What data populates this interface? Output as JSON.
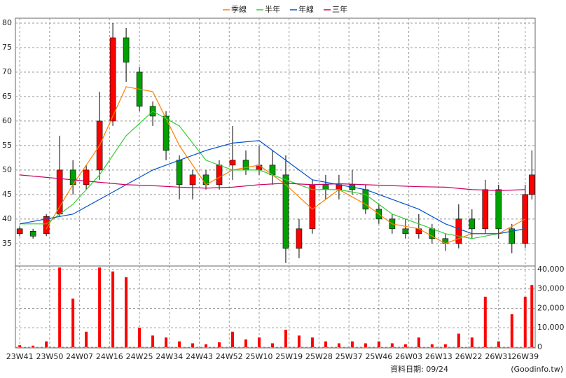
{
  "chart_data": [
    {
      "type": "candlestick",
      "x": [
        0,
        4,
        8,
        12,
        16,
        20,
        24,
        28,
        32,
        36,
        40,
        44,
        48,
        52,
        56,
        60,
        64,
        68,
        72,
        76,
        80,
        84,
        88,
        92,
        96,
        100,
        104,
        108,
        112,
        116,
        120,
        124,
        128,
        132,
        136,
        140,
        144,
        148,
        152,
        154
      ],
      "open": [
        37,
        37.5,
        37,
        41,
        50,
        47,
        50,
        60,
        77,
        70,
        63,
        61,
        52,
        47,
        49,
        47,
        51,
        52,
        50,
        51,
        49,
        34,
        38,
        47,
        46,
        47,
        46,
        42,
        40,
        38,
        37,
        38,
        36,
        35,
        40,
        38,
        46,
        38,
        35,
        45
      ],
      "high": [
        38.5,
        38,
        41,
        57,
        52,
        51,
        66,
        80,
        79,
        71,
        64,
        62,
        53,
        50,
        50,
        52,
        59,
        54,
        55,
        54,
        53,
        40,
        48,
        49,
        49,
        50,
        47,
        43,
        41,
        40,
        41,
        39,
        37,
        43,
        42,
        48,
        47,
        39,
        47,
        54
      ],
      "low": [
        36.5,
        36,
        36.5,
        40.5,
        45,
        46,
        48,
        59,
        68,
        62,
        59,
        52,
        44,
        44,
        46,
        46,
        48,
        49,
        49,
        47,
        31,
        32,
        37,
        44,
        44,
        45,
        41,
        39,
        37,
        36,
        36,
        35,
        33.5,
        34,
        36,
        37,
        36,
        33,
        34,
        44
      ],
      "close": [
        38,
        36.5,
        40.5,
        50,
        47,
        50,
        60,
        77,
        72,
        63,
        61,
        54,
        47,
        49,
        47,
        51,
        52,
        50,
        51,
        49,
        34,
        38,
        47,
        46,
        47,
        46,
        42,
        40,
        38,
        37,
        38,
        36,
        35,
        40,
        38,
        46,
        38,
        35,
        45,
        49
      ],
      "up_color": "#ff0000",
      "down_color": "#00a000",
      "series": [
        {
          "name": "季線",
          "color": "#ff8000",
          "x": [
            0,
            8,
            16,
            24,
            32,
            40,
            48,
            56,
            64,
            72,
            80,
            88,
            96,
            104,
            112,
            120,
            128,
            136,
            144,
            152
          ],
          "values": [
            null,
            38,
            47,
            55,
            67,
            66,
            55,
            47,
            50,
            51,
            47,
            42,
            46,
            43,
            39,
            38,
            35,
            37,
            37,
            40
          ]
        },
        {
          "name": "半年",
          "color": "#33cc33",
          "x": [
            0,
            8,
            16,
            24,
            32,
            40,
            48,
            56,
            64,
            72,
            80,
            88,
            96,
            104,
            112,
            120,
            128,
            136,
            144,
            152
          ],
          "values": [
            39,
            39,
            43,
            49,
            57,
            62,
            59,
            52,
            50,
            50,
            48,
            46,
            46,
            45,
            41,
            39,
            37,
            36,
            37,
            38
          ]
        },
        {
          "name": "年線",
          "color": "#0050d0",
          "x": [
            0,
            8,
            16,
            24,
            32,
            40,
            48,
            56,
            64,
            72,
            80,
            88,
            96,
            104,
            112,
            120,
            128,
            136,
            144,
            152
          ],
          "values": [
            39,
            40,
            41,
            44,
            47,
            50,
            52,
            54,
            55.5,
            56,
            52,
            48,
            47,
            46,
            44,
            42,
            39,
            37,
            37,
            38
          ]
        },
        {
          "name": "三年",
          "color": "#cc0066",
          "x": [
            0,
            8,
            16,
            24,
            32,
            40,
            48,
            56,
            64,
            72,
            80,
            88,
            96,
            104,
            112,
            120,
            128,
            136,
            144,
            152
          ],
          "values": [
            49,
            48.5,
            48,
            47.5,
            47,
            46.8,
            46.5,
            46.3,
            46.5,
            47,
            47.3,
            47,
            47.2,
            47,
            46.8,
            46.6,
            46.5,
            46,
            45.8,
            46
          ]
        }
      ],
      "xlim": [
        -1.3,
        155
      ],
      "ylim": [
        30.4,
        81
      ],
      "yticks": [
        35,
        40,
        45,
        50,
        55,
        60,
        65,
        70,
        75,
        80
      ],
      "grid": true
    },
    {
      "type": "bar",
      "x": [
        0,
        4,
        8,
        12,
        16,
        20,
        24,
        28,
        32,
        36,
        40,
        44,
        48,
        52,
        56,
        60,
        64,
        68,
        72,
        76,
        80,
        84,
        88,
        92,
        96,
        100,
        104,
        108,
        112,
        116,
        120,
        124,
        128,
        132,
        136,
        140,
        144,
        148,
        152,
        154
      ],
      "values": [
        1000,
        800,
        3000,
        41000,
        25000,
        8000,
        41000,
        39000,
        36000,
        10000,
        6000,
        5000,
        3000,
        2000,
        1500,
        2500,
        8000,
        4000,
        5000,
        2000,
        9000,
        6000,
        5000,
        3000,
        2000,
        3000,
        2000,
        3000,
        2000,
        1500,
        5000,
        1500,
        1500,
        7000,
        5000,
        26000,
        3000,
        17000,
        26000,
        32000
      ],
      "color": "#ff0000",
      "xlim": [
        -1.3,
        155
      ],
      "ylim": [
        0,
        41800
      ],
      "yticks": [
        0,
        {
          "value": 10000,
          "label": "10,000"
        },
        {
          "value": 20000,
          "label": "20,000"
        },
        {
          "value": 30000,
          "label": "30,000"
        },
        {
          "value": 40000,
          "label": "40,000"
        }
      ],
      "xticks": [
        {
          "value": 0,
          "label": "23W41"
        },
        {
          "value": 9,
          "label": "23W50"
        },
        {
          "value": 18,
          "label": "24W07"
        },
        {
          "value": 27,
          "label": "24W16"
        },
        {
          "value": 36,
          "label": "24W25"
        },
        {
          "value": 45,
          "label": "24W34"
        },
        {
          "value": 54,
          "label": "24W43"
        },
        {
          "value": 63,
          "label": "24W52"
        },
        {
          "value": 72,
          "label": "25W10"
        },
        {
          "value": 81,
          "label": "25W19"
        },
        {
          "value": 90,
          "label": "25W28"
        },
        {
          "value": 99,
          "label": "25W37"
        },
        {
          "value": 108,
          "label": "25W46"
        },
        {
          "value": 117,
          "label": "26W03"
        },
        {
          "value": 126,
          "label": "26W13"
        },
        {
          "value": 135,
          "label": "26W22"
        },
        {
          "value": 144,
          "label": "26W31"
        },
        {
          "value": 152,
          "label": "26W39"
        }
      ],
      "grid": true
    }
  ],
  "footer_date": "資料日期: 09/24",
  "source": "(Goodinfo.tw)"
}
